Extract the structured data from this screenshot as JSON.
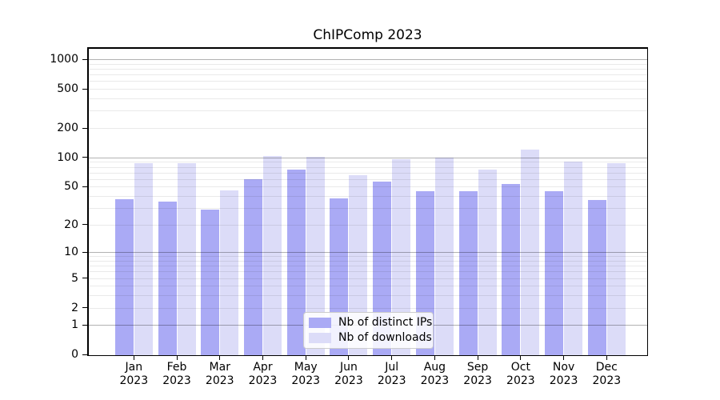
{
  "title": "ChIPComp 2023",
  "legend": {
    "items": [
      {
        "label": "Nb of distinct IPs",
        "color": "#aaaaf5"
      },
      {
        "label": "Nb of downloads",
        "color": "#dcdcf8"
      }
    ]
  },
  "axes": {
    "y_tick_labels": [
      "0",
      "1",
      "2",
      "5",
      "10",
      "20",
      "50",
      "100",
      "200",
      "500",
      "1000"
    ],
    "x_months": [
      "Jan",
      "Feb",
      "Mar",
      "Apr",
      "May",
      "Jun",
      "Jul",
      "Aug",
      "Sep",
      "Oct",
      "Nov",
      "Dec"
    ],
    "x_year": "2023"
  },
  "chart_data": {
    "type": "bar",
    "title": "ChIPComp 2023",
    "categories": [
      "Jan 2023",
      "Feb 2023",
      "Mar 2023",
      "Apr 2023",
      "May 2023",
      "Jun 2023",
      "Jul 2023",
      "Aug 2023",
      "Sep 2023",
      "Oct 2023",
      "Nov 2023",
      "Dec 2023"
    ],
    "series": [
      {
        "name": "Nb of distinct IPs",
        "color": "#aaaaf5",
        "values": [
          37,
          35,
          29,
          60,
          75,
          38,
          56,
          45,
          45,
          53,
          45,
          36
        ]
      },
      {
        "name": "Nb of downloads",
        "color": "#dcdcf8",
        "values": [
          87,
          87,
          46,
          103,
          101,
          66,
          95,
          100,
          75,
          120,
          90,
          88
        ]
      }
    ],
    "xlabel": "",
    "ylabel": "",
    "yscale": "log1p",
    "ylim": [
      0,
      1250
    ],
    "yticks": [
      0,
      1,
      2,
      5,
      10,
      20,
      50,
      100,
      200,
      500,
      1000
    ],
    "grid_major": [
      1,
      10,
      100,
      1000
    ],
    "grid_minor": [
      2,
      3,
      4,
      5,
      6,
      7,
      8,
      9,
      20,
      30,
      40,
      50,
      60,
      70,
      80,
      90,
      200,
      300,
      400,
      500,
      600,
      700,
      800,
      900
    ],
    "grid": true,
    "legend_position": "lower center"
  },
  "colors": {
    "grid_major": "#b3b3b3",
    "grid_minor": "#eaeaea",
    "spine": "#000000",
    "background": "#ffffff"
  }
}
